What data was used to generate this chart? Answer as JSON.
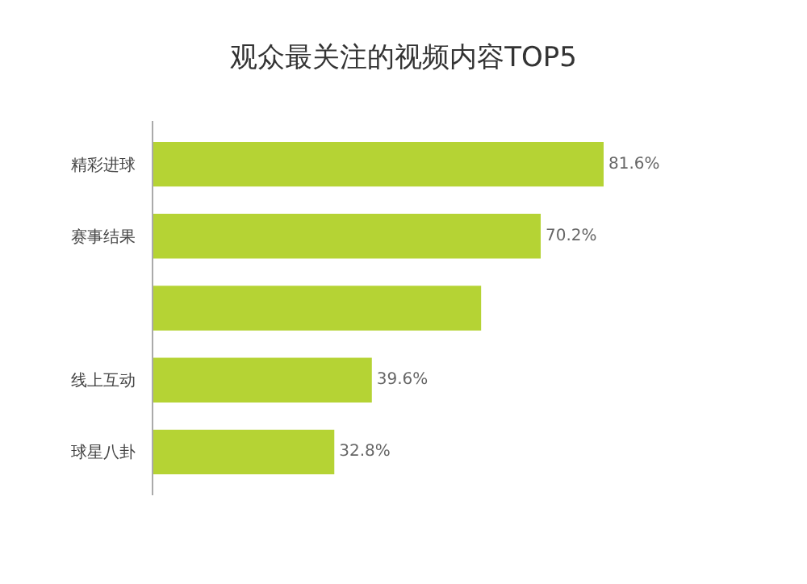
{
  "chart_data": {
    "type": "bar",
    "orientation": "horizontal",
    "title": "观众最关注的视频内容TOP5",
    "categories": [
      "精彩进球",
      "赛事结果",
      null,
      "线上互动",
      "球星八卦"
    ],
    "values": [
      81.6,
      70.2,
      59.4,
      39.6,
      32.8
    ],
    "value_labels": [
      "81.6%",
      "70.2%",
      null,
      "39.6%",
      "32.8%"
    ],
    "color": "#b5d334",
    "tick_labels": "y"
  }
}
